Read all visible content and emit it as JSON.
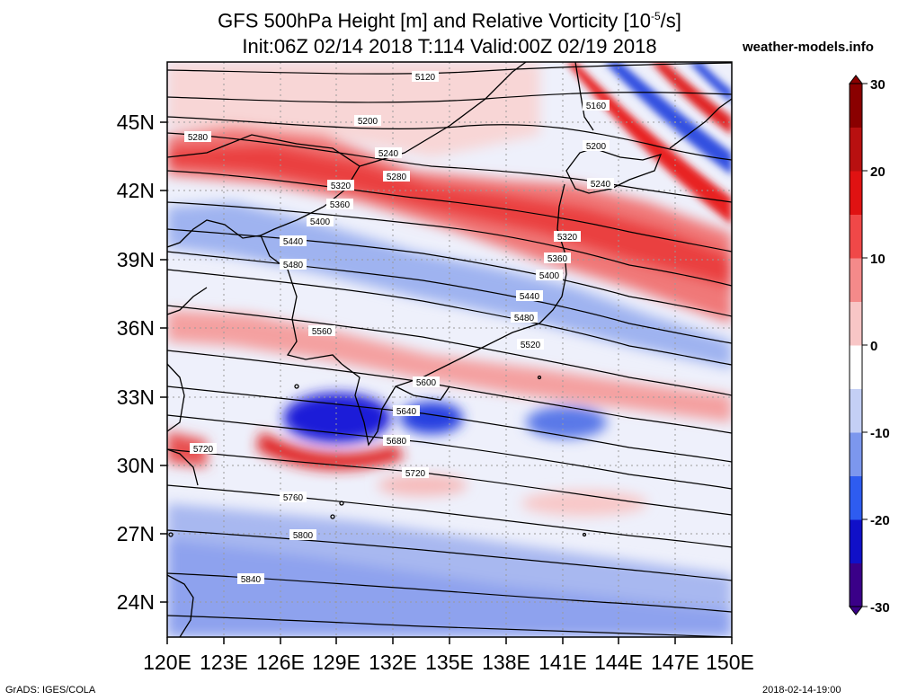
{
  "header": {
    "title_line1": "GFS 500hPa Height [m] and Relative Vorticity [10",
    "title_line1_exp": "-5",
    "title_line1_tail": "/s]",
    "title_line2": "Init:06Z 02/14 2018 T:114 Valid:00Z 02/19 2018",
    "brand": "weather-models.info"
  },
  "footer": {
    "left": "GrADS: IGES/COLA",
    "right": "2018-02-14-19:00"
  },
  "map": {
    "lon_labels": [
      "120E",
      "123E",
      "126E",
      "129E",
      "132E",
      "135E",
      "138E",
      "141E",
      "144E",
      "147E",
      "150E"
    ],
    "lat_labels": [
      "45N",
      "42N",
      "39N",
      "36N",
      "33N",
      "30N",
      "27N",
      "24N"
    ]
  },
  "colorbar": {
    "tick_labels": [
      "30",
      "20",
      "10",
      "0",
      "-10",
      "-20",
      "-30"
    ],
    "colors": [
      "#3a0088",
      "#1010c8",
      "#2e5cf0",
      "#7c97ee",
      "#c4cff5",
      "#ffffff",
      "#f8c6c6",
      "#f48a8a",
      "#f04848",
      "#e01212",
      "#b81010",
      "#8a0000"
    ]
  },
  "contours": {
    "labels": [
      "5120",
      "5160",
      "5200",
      "5200",
      "5240",
      "5240",
      "5280",
      "5280",
      "5320",
      "5320",
      "5360",
      "5360",
      "5400",
      "5400",
      "5440",
      "5440",
      "5480",
      "5480",
      "5520",
      "5560",
      "5600",
      "5640",
      "5680",
      "5720",
      "5720",
      "5760",
      "5800",
      "5840"
    ]
  }
}
